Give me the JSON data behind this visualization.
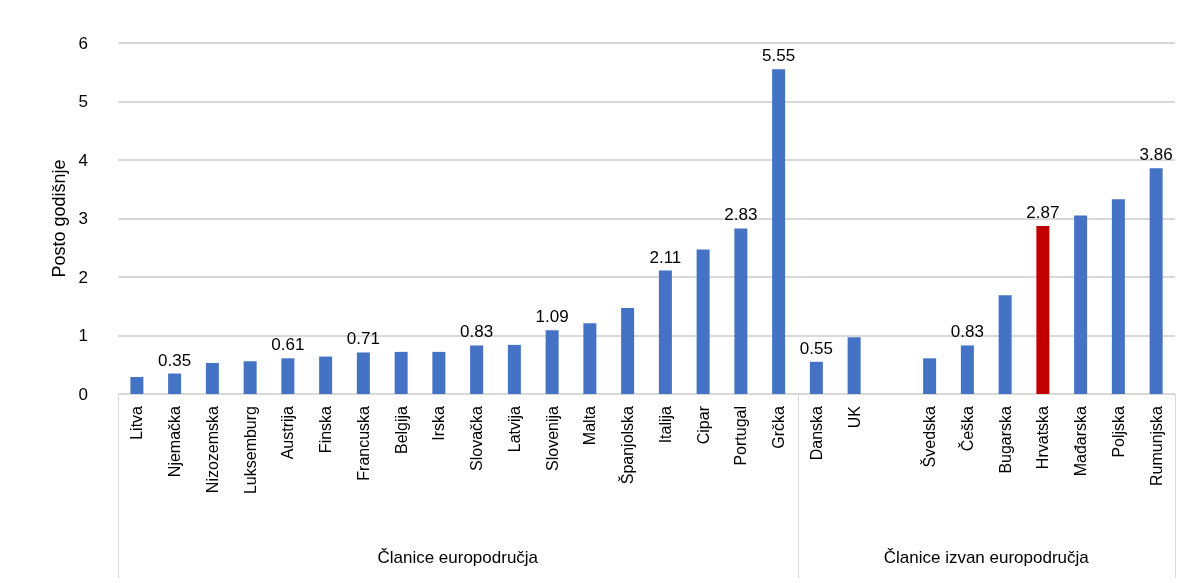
{
  "chart_data": {
    "type": "bar",
    "ylabel": "Posto godišnje",
    "categories": [
      "Litva",
      "Njemačka",
      "Nizozemska",
      "Luksemburg",
      "Austrija",
      "Finska",
      "Francuska",
      "Belgija",
      "Irska",
      "Slovačka",
      "Latvija",
      "Slovenija",
      "Malta",
      "Španjolska",
      "Italija",
      "Cipar",
      "Portugal",
      "Grčka",
      "Danska",
      "UK",
      null,
      "Švedska",
      "Češka",
      "Bugarska",
      "Hrvatska",
      "Mađarska",
      "Poljska",
      "Rumunjska"
    ],
    "values": [
      0.29,
      0.35,
      0.53,
      0.56,
      0.61,
      0.64,
      0.71,
      0.72,
      0.72,
      0.83,
      0.84,
      1.09,
      1.21,
      1.47,
      2.11,
      2.47,
      2.83,
      5.55,
      0.55,
      0.97,
      null,
      0.61,
      0.83,
      1.69,
      2.87,
      3.05,
      3.33,
      3.86
    ],
    "colors": [
      "#4472c4",
      "#4472c4",
      "#4472c4",
      "#4472c4",
      "#4472c4",
      "#4472c4",
      "#4472c4",
      "#4472c4",
      "#4472c4",
      "#4472c4",
      "#4472c4",
      "#4472c4",
      "#4472c4",
      "#4472c4",
      "#4472c4",
      "#4472c4",
      "#4472c4",
      "#4472c4",
      "#4472c4",
      "#4472c4",
      "#4472c4",
      "#4472c4",
      "#4472c4",
      "#4472c4",
      "#c00000",
      "#4472c4",
      "#4472c4",
      "#4472c4"
    ],
    "value_labels": [
      null,
      "0.35",
      null,
      null,
      "0.61",
      null,
      "0.71",
      null,
      null,
      "0.83",
      null,
      "1.09",
      null,
      null,
      "2.11",
      null,
      "2.83",
      "5.55",
      "0.55",
      null,
      null,
      null,
      "0.83",
      null,
      "2.87",
      null,
      null,
      "3.86"
    ],
    "ylim": [
      0,
      6
    ],
    "yticks": [
      0,
      1,
      2,
      3,
      4,
      5,
      6
    ],
    "grid": "y",
    "annotations": [
      "Članice europodručja",
      "Članice izvan europodručja"
    ]
  }
}
